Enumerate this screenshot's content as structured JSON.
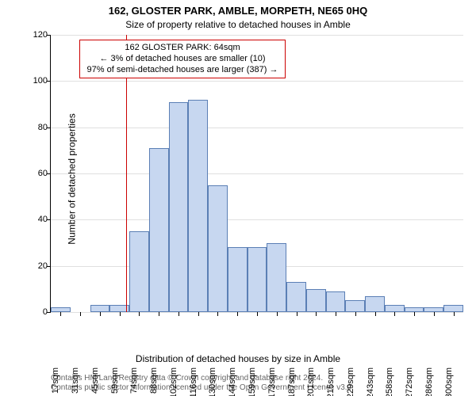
{
  "title": "162, GLOSTER PARK, AMBLE, MORPETH, NE65 0HQ",
  "subtitle": "Size of property relative to detached houses in Amble",
  "y_axis_label": "Number of detached properties",
  "x_axis_label": "Distribution of detached houses by size in Amble",
  "annotation": {
    "line1": "162 GLOSTER PARK: 64sqm",
    "line2": "← 3% of detached houses are smaller (10)",
    "line3": "97% of semi-detached houses are larger (387) →",
    "border_color": "#cc0000"
  },
  "chart": {
    "type": "histogram",
    "ylim": [
      0,
      120
    ],
    "ytick_step": 20,
    "y_ticks": [
      0,
      20,
      40,
      60,
      80,
      100,
      120
    ],
    "background_color": "#ffffff",
    "grid_color": "#e0e0e0",
    "bar_fill": "#c7d7f0",
    "bar_stroke": "#5b7fb5",
    "bar_width_ratio": 1.0,
    "axis_fontsize": 11,
    "label_fontsize": 12,
    "title_fontsize": 13,
    "x_labels": [
      "17sqm",
      "31sqm",
      "45sqm",
      "59sqm",
      "74sqm",
      "88sqm",
      "102sqm",
      "116sqm",
      "130sqm",
      "144sqm",
      "159sqm",
      "173sqm",
      "187sqm",
      "201sqm",
      "215sqm",
      "229sqm",
      "243sqm",
      "258sqm",
      "272sqm",
      "286sqm",
      "300sqm"
    ],
    "values": [
      2,
      0,
      3,
      3,
      35,
      71,
      91,
      92,
      55,
      28,
      28,
      30,
      13,
      10,
      9,
      5,
      7,
      3,
      2,
      2,
      3
    ],
    "marker_value": 64,
    "marker_color": "#cc0000",
    "x_domain": [
      10,
      307
    ]
  },
  "credit": {
    "line1": "Contains HM Land Registry data © Crown copyright and database right 2024.",
    "line2": "Contains public sector information licensed under the Open Government Licence v3.0.",
    "color": "#666666",
    "fontsize": 10
  }
}
